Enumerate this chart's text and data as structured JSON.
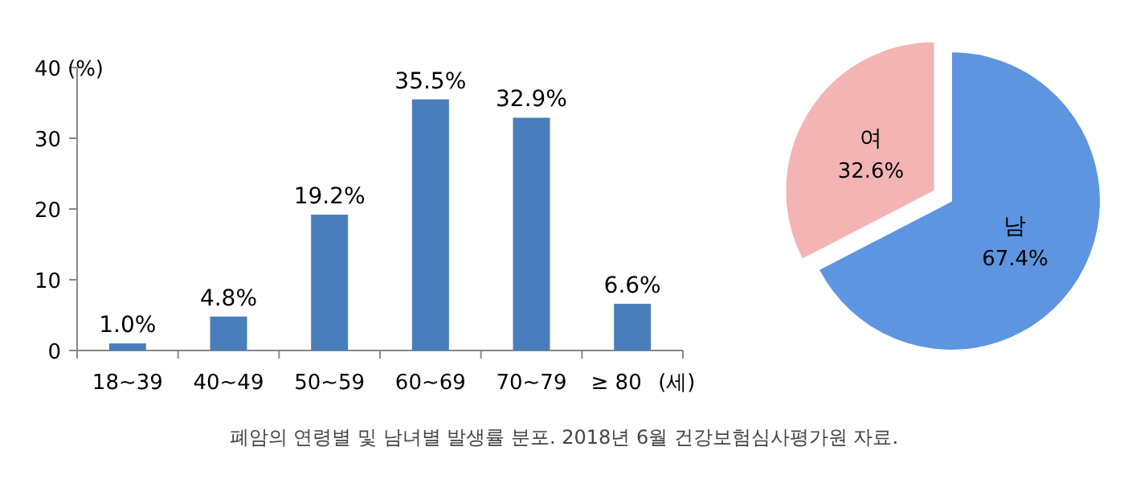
{
  "chart_data": [
    {
      "type": "bar",
      "categories": [
        "18~39",
        "40~49",
        "50~59",
        "60~69",
        "70~79",
        "≥ 80"
      ],
      "values": [
        1.0,
        4.8,
        19.2,
        35.5,
        32.9,
        6.6
      ],
      "value_labels": [
        "1.0%",
        "4.8%",
        "19.2%",
        "35.5%",
        "32.9%",
        "6.6%"
      ],
      "color": "#4a7ebb",
      "ylim": [
        0,
        40
      ],
      "yticks": [
        0,
        10,
        20,
        30,
        40
      ],
      "ylabel": "(%)",
      "xlabel": "(세)",
      "annotations": [
        "폐암의 연령별 및 남녀별 발생률 분포. 2018년 6월 건강보험심사평가원 자료."
      ]
    },
    {
      "type": "pie",
      "categories": [
        "여",
        "남"
      ],
      "values": [
        32.6,
        67.4
      ],
      "value_labels": [
        "32.6%",
        "67.4%"
      ],
      "colors": [
        "#f4b4b4",
        "#5e95e0"
      ]
    }
  ]
}
